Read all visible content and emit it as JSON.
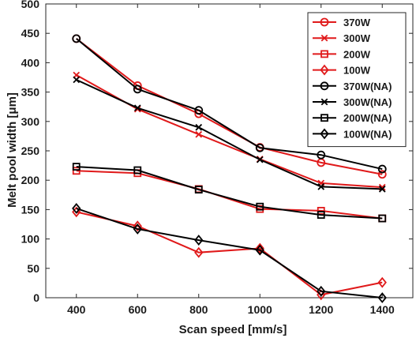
{
  "chart_data": {
    "type": "line",
    "title": "",
    "xlabel": "Scan speed [mm/s]",
    "ylabel": "Melt pool width [μm]",
    "x": [
      400,
      600,
      800,
      1000,
      1200,
      1400
    ],
    "xlim": [
      300,
      1500
    ],
    "ylim": [
      0,
      500
    ],
    "xticks": [
      "400",
      "600",
      "800",
      "1000",
      "1200",
      "1400"
    ],
    "yticks": [
      "0",
      "50",
      "100",
      "150",
      "200",
      "250",
      "300",
      "350",
      "400",
      "450",
      "500"
    ],
    "grid": false,
    "legend_position": "top-right",
    "series": [
      {
        "name": "370W",
        "color": "#e0191a",
        "marker": "circle",
        "values": [
          441,
          361,
          313,
          256,
          230,
          210
        ]
      },
      {
        "name": "300W",
        "color": "#e0191a",
        "marker": "x",
        "values": [
          379,
          321,
          278,
          236,
          195,
          188
        ]
      },
      {
        "name": "200W",
        "color": "#e0191a",
        "marker": "square",
        "values": [
          216,
          212,
          185,
          151,
          148,
          135
        ]
      },
      {
        "name": "100W",
        "color": "#e0191a",
        "marker": "diamond",
        "values": [
          146,
          122,
          77,
          84,
          5,
          26
        ]
      },
      {
        "name": "370W(NA)",
        "color": "#000000",
        "marker": "circle",
        "values": [
          441,
          355,
          319,
          255,
          243,
          219
        ]
      },
      {
        "name": "300W(NA)",
        "color": "#000000",
        "marker": "x",
        "values": [
          371,
          323,
          290,
          235,
          189,
          185
        ]
      },
      {
        "name": "200W(NA)",
        "color": "#000000",
        "marker": "square",
        "values": [
          223,
          217,
          184,
          155,
          141,
          135
        ]
      },
      {
        "name": "100W(NA)",
        "color": "#000000",
        "marker": "diamond",
        "values": [
          152,
          117,
          98,
          81,
          11,
          0
        ]
      }
    ]
  }
}
